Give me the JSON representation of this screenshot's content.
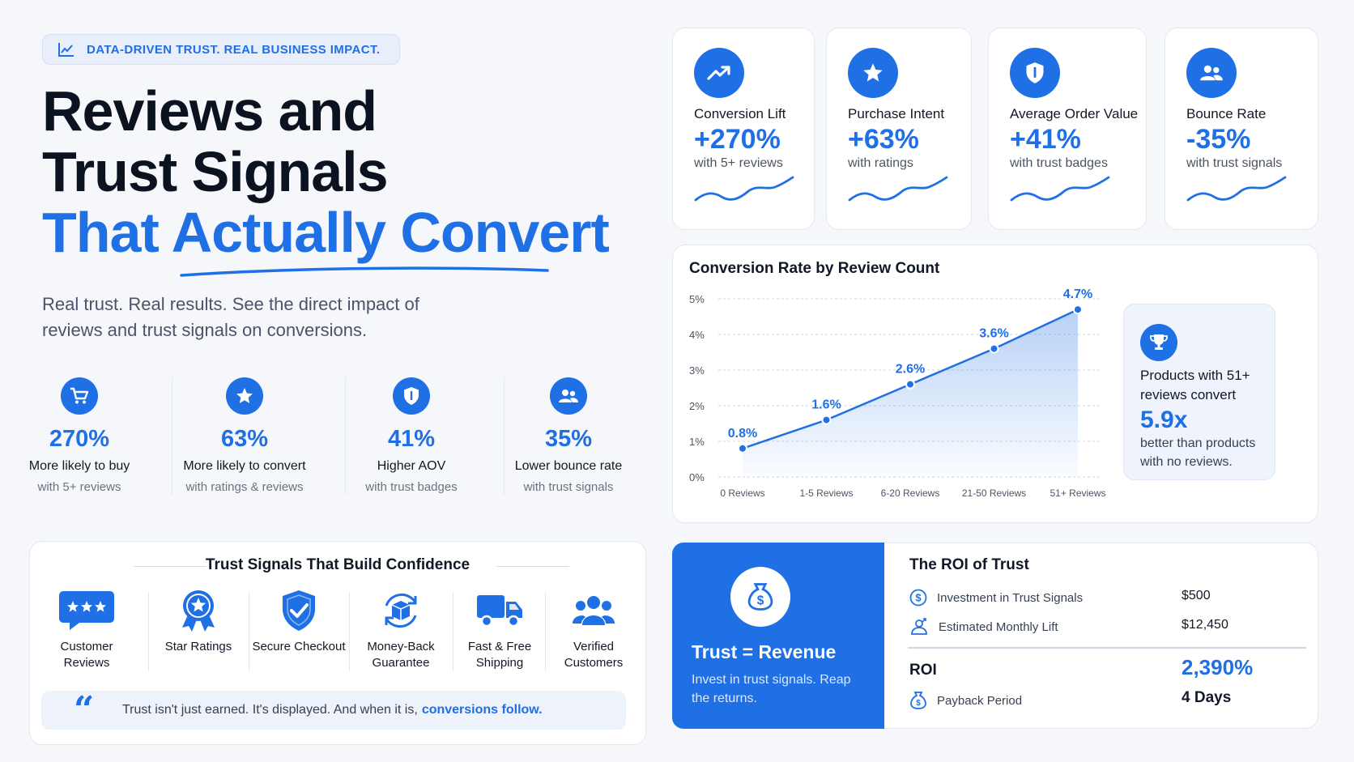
{
  "tagline": "DATA-DRIVEN TRUST. REAL BUSINESS IMPACT.",
  "headline": {
    "line1": "Reviews and",
    "line2": "Trust Signals",
    "line3": "That Actually Convert"
  },
  "subtitle": "Real trust. Real results. See the direct impact of reviews and trust signals on conversions.",
  "stats": [
    {
      "icon": "cart-icon",
      "value": "270%",
      "label": "More likely to buy",
      "sub": "with 5+ reviews"
    },
    {
      "icon": "star-icon",
      "value": "63%",
      "label": "More likely to convert",
      "sub": "with ratings & reviews"
    },
    {
      "icon": "shield-icon",
      "value": "41%",
      "label": "Higher AOV",
      "sub": "with trust badges"
    },
    {
      "icon": "users-icon",
      "value": "35%",
      "label": "Lower bounce rate",
      "sub": "with trust signals"
    }
  ],
  "trust_signals": {
    "title": "Trust Signals That Build Confidence",
    "items": [
      {
        "icon": "review-bubble-icon",
        "label": "Customer Reviews"
      },
      {
        "icon": "ribbon-star-icon",
        "label": "Star Ratings"
      },
      {
        "icon": "shield-check-icon",
        "label": "Secure Checkout"
      },
      {
        "icon": "money-back-icon",
        "label": "Money-Back Guarantee"
      },
      {
        "icon": "truck-icon",
        "label": "Fast & Free Shipping"
      },
      {
        "icon": "customers-icon",
        "label": "Verified Customers"
      }
    ],
    "quote": "Trust isn't just earned. It's displayed. And when it is,",
    "quote_highlight": "conversions follow."
  },
  "kpis": [
    {
      "icon": "trend-up-icon",
      "label": "Conversion Lift",
      "value": "+270%",
      "sub": "with 5+ reviews"
    },
    {
      "icon": "star-icon",
      "label": "Purchase Intent",
      "value": "+63%",
      "sub": "with ratings"
    },
    {
      "icon": "shield-icon",
      "label": "Average Order Value",
      "value": "+41%",
      "sub": "with trust badges"
    },
    {
      "icon": "users-icon",
      "label": "Bounce Rate",
      "value": "-35%",
      "sub": "with trust signals"
    }
  ],
  "chart_data": {
    "type": "area",
    "title": "Conversion Rate by Review Count",
    "categories": [
      "0 Reviews",
      "1-5 Reviews",
      "6-20 Reviews",
      "21-50 Reviews",
      "51+ Reviews"
    ],
    "values": [
      0.8,
      1.6,
      2.6,
      3.6,
      4.7
    ],
    "data_labels": [
      "0.8%",
      "1.6%",
      "2.6%",
      "3.6%",
      "4.7%"
    ],
    "y_ticks": [
      "0%",
      "1%",
      "2%",
      "3%",
      "4%",
      "5%"
    ],
    "ylim": [
      0,
      5
    ],
    "grid": true,
    "accent_color": "#1f6fe5"
  },
  "callout": {
    "icon": "trophy-icon",
    "text": "Products with 51+ reviews convert",
    "value": "5.9x",
    "sub": "better than products with no reviews."
  },
  "roi": {
    "banner_title": "Trust = Revenue",
    "banner_sub": "Invest in trust signals. Reap the returns.",
    "title": "The ROI of Trust",
    "rows": [
      {
        "icon": "dollar-icon",
        "label": "Investment in Trust Signals",
        "value": "$500"
      },
      {
        "icon": "growth-icon",
        "label": "Estimated Monthly Lift",
        "value": "$12,450"
      }
    ],
    "roi_label": "ROI",
    "roi_value": "2,390%",
    "payback_label": "Payback Period",
    "payback_value": "4 Days"
  }
}
